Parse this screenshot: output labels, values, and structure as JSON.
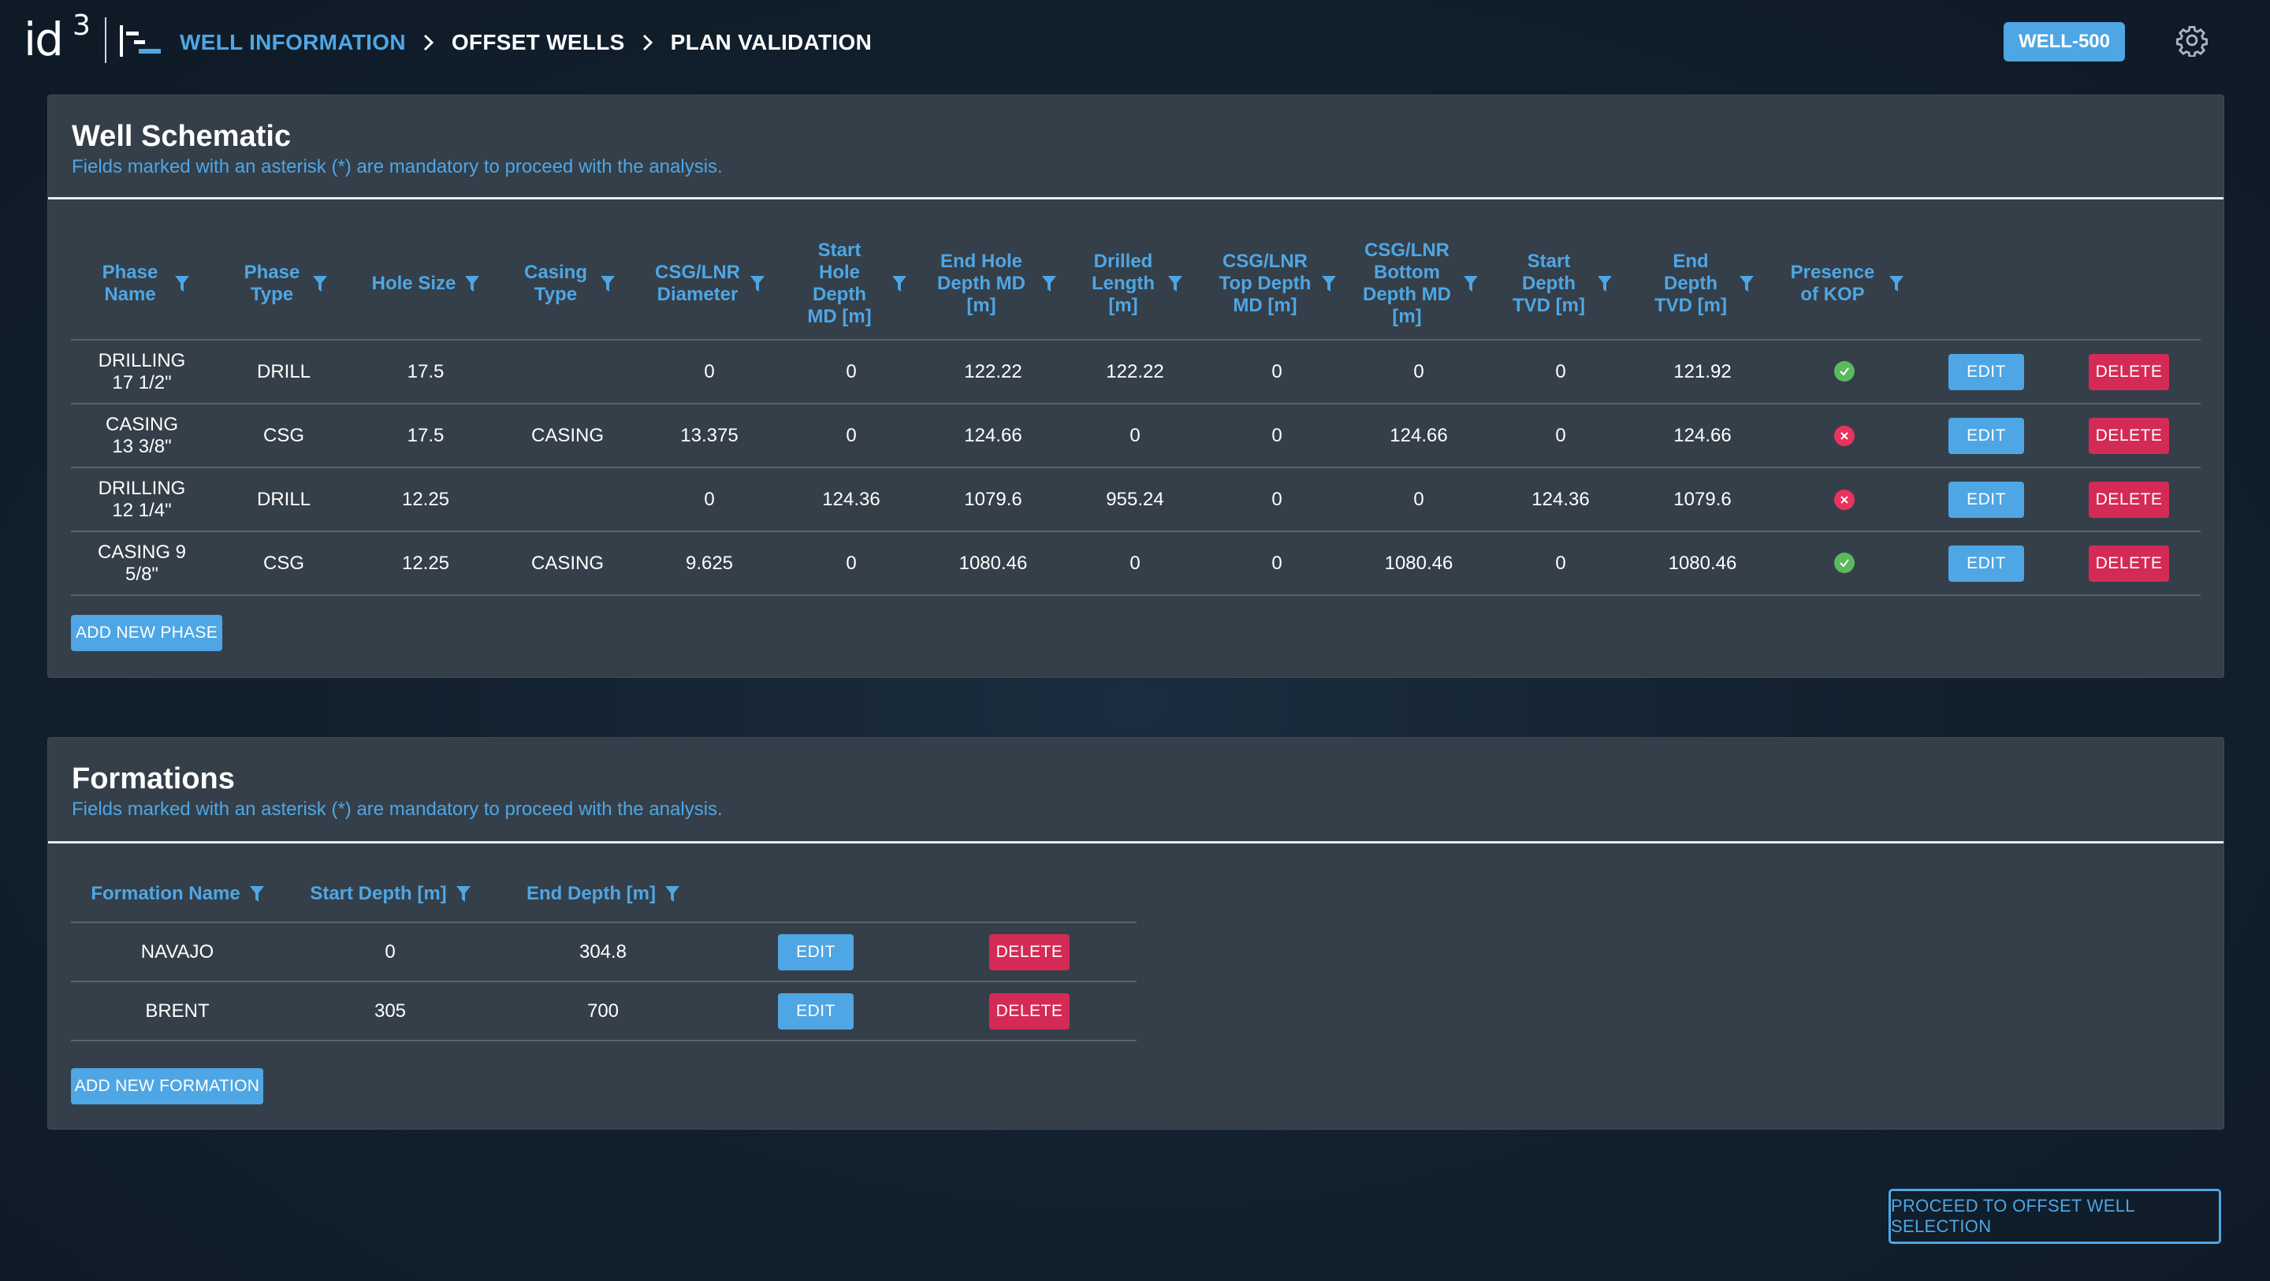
{
  "header": {
    "logo_text": "id",
    "logo_sup": "3",
    "breadcrumb": {
      "item1": "WELL INFORMATION",
      "item2": "OFFSET WELLS",
      "item3": "PLAN VALIDATION"
    },
    "well_badge": "WELL-500",
    "icons": [
      "menu-icon",
      "chevron-right-icon",
      "gear-icon"
    ]
  },
  "colors": {
    "accent": "#4fa6e4",
    "danger": "#d42a56",
    "success": "#5cb85c",
    "panel": "#343f49",
    "background": "#13212f"
  },
  "well_schematic": {
    "title": "Well Schematic",
    "subtitle": "Fields marked with an asterisk (*) are mandatory to proceed with the analysis.",
    "columns": [
      "Phase Name",
      "Phase Type",
      "Hole Size",
      "Casing Type",
      "CSG/LNR Diameter",
      "Start Hole Depth MD [m]",
      "End Hole Depth MD [m]",
      "Drilled Length [m]",
      "CSG/LNR Top Depth MD [m]",
      "CSG/LNR Bottom Depth MD [m]",
      "Start Depth TVD [m]",
      "End Depth TVD [m]",
      "Presence of KOP"
    ],
    "rows": [
      {
        "phase_name": "DRILLING 17 1/2\"",
        "phase_type": "DRILL",
        "hole_size": "17.5",
        "casing_type": "",
        "diameter": "0",
        "start_md": "0",
        "end_md": "122.22",
        "drilled": "122.22",
        "top_md": "0",
        "bottom_md": "0",
        "start_tvd": "0",
        "end_tvd": "121.92",
        "kop": "yes"
      },
      {
        "phase_name": "CASING 13 3/8\"",
        "phase_type": "CSG",
        "hole_size": "17.5",
        "casing_type": "CASING",
        "diameter": "13.375",
        "start_md": "0",
        "end_md": "124.66",
        "drilled": "0",
        "top_md": "0",
        "bottom_md": "124.66",
        "start_tvd": "0",
        "end_tvd": "124.66",
        "kop": "no"
      },
      {
        "phase_name": "DRILLING 12 1/4\"",
        "phase_type": "DRILL",
        "hole_size": "12.25",
        "casing_type": "",
        "diameter": "0",
        "start_md": "124.36",
        "end_md": "1079.6",
        "drilled": "955.24",
        "top_md": "0",
        "bottom_md": "0",
        "start_tvd": "124.36",
        "end_tvd": "1079.6",
        "kop": "no"
      },
      {
        "phase_name": "CASING 9 5/8\"",
        "phase_type": "CSG",
        "hole_size": "12.25",
        "casing_type": "CASING",
        "diameter": "9.625",
        "start_md": "0",
        "end_md": "1080.46",
        "drilled": "0",
        "top_md": "0",
        "bottom_md": "1080.46",
        "start_tvd": "0",
        "end_tvd": "1080.46",
        "kop": "yes"
      }
    ],
    "edit_label": "EDIT",
    "delete_label": "DELETE",
    "add_label": "ADD NEW PHASE"
  },
  "formations": {
    "title": "Formations",
    "subtitle": "Fields marked with an asterisk (*) are mandatory to proceed with the analysis.",
    "columns": [
      "Formation Name",
      "Start Depth [m]",
      "End Depth [m]"
    ],
    "rows": [
      {
        "name": "NAVAJO",
        "start": "0",
        "end": "304.8"
      },
      {
        "name": "BRENT",
        "start": "305",
        "end": "700"
      }
    ],
    "edit_label": "EDIT",
    "delete_label": "DELETE",
    "add_label": "ADD NEW FORMATION"
  },
  "footer": {
    "proceed_label": "PROCEED TO OFFSET WELL SELECTION"
  }
}
